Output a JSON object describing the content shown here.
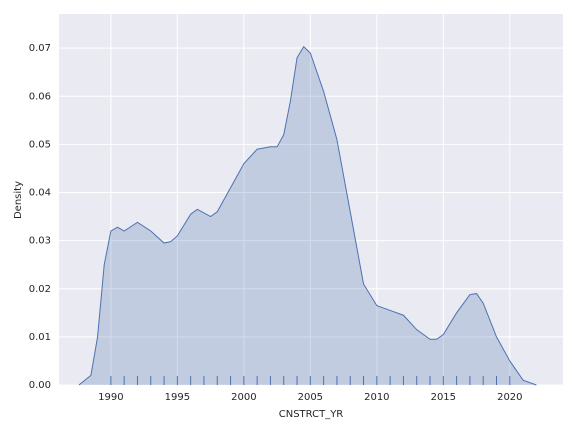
{
  "chart_data": {
    "type": "kde",
    "xlabel": "CNSTRCT_YR",
    "ylabel": "Density",
    "color": "#4c72b0",
    "grid": true,
    "x": [
      1987.6,
      1988.5,
      1989,
      1989.5,
      1990,
      1990.5,
      1991,
      1992,
      1993,
      1994,
      1994.5,
      1995,
      1996,
      1996.5,
      1997.5,
      1998,
      1999,
      2000,
      2001,
      2002,
      2002.5,
      2003,
      2003.5,
      2004,
      2004.5,
      2005,
      2006,
      2007,
      2008,
      2009,
      2010,
      2011,
      2012,
      2013,
      2014,
      2014.5,
      2015,
      2016,
      2017,
      2017.5,
      2018,
      2019,
      2020,
      2021,
      2022
    ],
    "values": [
      0,
      0.002,
      0.01,
      0.025,
      0.032,
      0.0328,
      0.032,
      0.0338,
      0.032,
      0.0295,
      0.0298,
      0.031,
      0.0355,
      0.0365,
      0.035,
      0.036,
      0.041,
      0.046,
      0.049,
      0.0495,
      0.0495,
      0.052,
      0.059,
      0.068,
      0.0703,
      0.069,
      0.061,
      0.051,
      0.036,
      0.021,
      0.0165,
      0.0155,
      0.0145,
      0.0115,
      0.0095,
      0.0095,
      0.0105,
      0.015,
      0.0188,
      0.019,
      0.017,
      0.01,
      0.005,
      0.001,
      0
    ],
    "rug": [
      1990,
      1991,
      1992,
      1993,
      1994,
      1995,
      1996,
      1997,
      1998,
      1999,
      2000,
      2001,
      2002,
      2003,
      2004,
      2005,
      2006,
      2007,
      2008,
      2009,
      2010,
      2011,
      2012,
      2013,
      2014,
      2015,
      2016,
      2017,
      2018,
      2019,
      2020
    ],
    "xlim": [
      1986.1,
      2024
    ],
    "ylim": [
      0,
      0.0771
    ],
    "xticks": [
      1990,
      1995,
      2000,
      2005,
      2010,
      2015,
      2020
    ],
    "yticks": [
      {
        "value": 0,
        "label": "0.00"
      },
      {
        "value": 0.01,
        "label": "0.01"
      },
      {
        "value": 0.02,
        "label": "0.02"
      },
      {
        "value": 0.03,
        "label": "0.03"
      },
      {
        "value": 0.04,
        "label": "0.04"
      },
      {
        "value": 0.05,
        "label": "0.05"
      },
      {
        "value": 0.06,
        "label": "0.06"
      },
      {
        "value": 0.07,
        "label": "0.07"
      }
    ]
  }
}
